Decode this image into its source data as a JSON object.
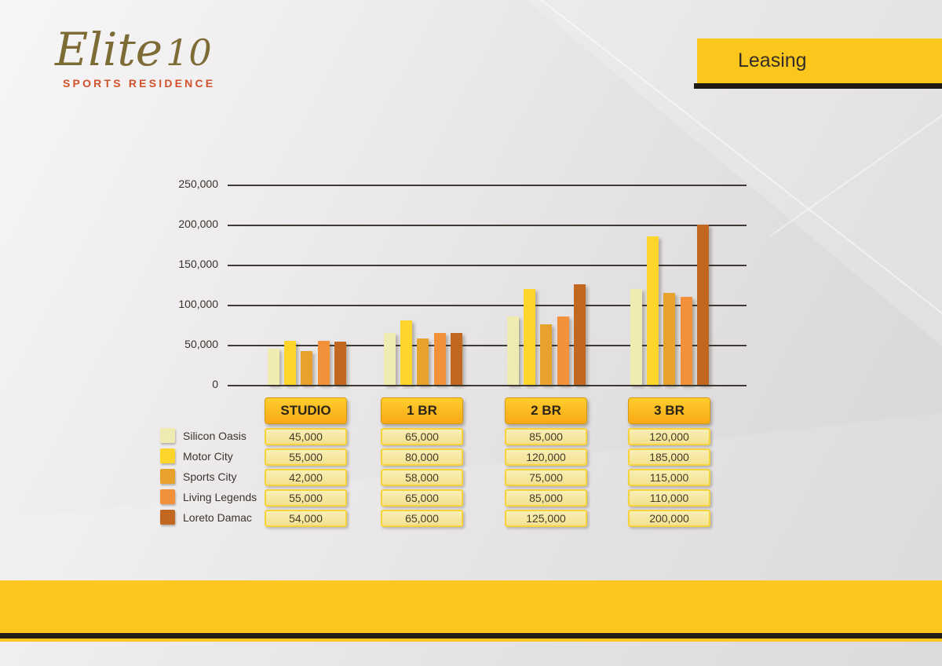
{
  "brand": {
    "name": "Elite",
    "number": "10",
    "subtitle": "SPORTS RESIDENCE"
  },
  "banner": {
    "label": "Leasing"
  },
  "chart_data": {
    "type": "bar",
    "title": "Leasing",
    "categories": [
      "STUDIO",
      "1 BR",
      "2 BR",
      "3 BR"
    ],
    "series": [
      {
        "name": "Silicon Oasis",
        "color": "#f0ebb0",
        "values": [
          45000,
          65000,
          85000,
          120000
        ]
      },
      {
        "name": "Motor City",
        "color": "#fed62b",
        "values": [
          55000,
          80000,
          120000,
          185000
        ]
      },
      {
        "name": "Sports City",
        "color": "#e8a22b",
        "values": [
          42000,
          58000,
          75000,
          115000
        ]
      },
      {
        "name": "Living Legends",
        "color": "#f3903a",
        "values": [
          55000,
          65000,
          85000,
          110000
        ]
      },
      {
        "name": "Loreto Damac",
        "color": "#c2671f",
        "values": [
          54000,
          65000,
          125000,
          200000
        ]
      }
    ],
    "y_ticks": [
      "250,000",
      "200,000",
      "150,000",
      "100,000",
      "50,000",
      "0"
    ],
    "ylim": [
      0,
      250000
    ],
    "grid": true,
    "legend_position": "bottom-left"
  },
  "table": {
    "columns": [
      {
        "header": "STUDIO",
        "values": [
          "45,000",
          "55,000",
          "42,000",
          "55,000",
          "54,000"
        ]
      },
      {
        "header": "1 BR",
        "values": [
          "65,000",
          "80,000",
          "58,000",
          "65,000",
          "65,000"
        ]
      },
      {
        "header": "2 BR",
        "values": [
          "85,000",
          "120,000",
          "75,000",
          "85,000",
          "125,000"
        ]
      },
      {
        "header": "3 BR",
        "values": [
          "120,000",
          "185,000",
          "115,000",
          "110,000",
          "200,000"
        ]
      }
    ]
  },
  "colors": {
    "banner_yellow": "#fcc71d",
    "band_black": "#221e15",
    "footer_yellow": "#fdc71f",
    "grid": "#3e3a35",
    "header_gradient_top": "#ffce2d",
    "header_gradient_bottom": "#f8a816",
    "cell_bg": "#f7eba6",
    "cell_border": "#f6d23b",
    "logo": "#7d6c35",
    "logo_subtitle": "#d2512b"
  }
}
